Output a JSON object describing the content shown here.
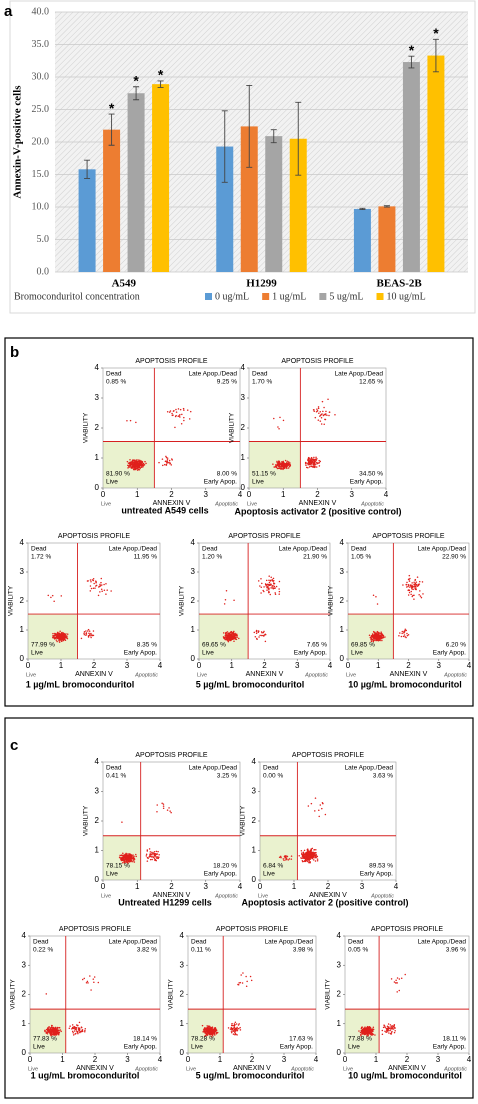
{
  "panel_labels": [
    "a",
    "b",
    "c"
  ],
  "chart_data": [
    {
      "type": "bar",
      "ylabel": "Annexin-V-positive cells",
      "legend_title": "Bromoconduritol concentration",
      "categories": [
        "A549",
        "H1299",
        "BEAS-2B"
      ],
      "series": [
        {
          "name": "0 ug/mL",
          "color": "#5b9bd5",
          "values": [
            15.8,
            19.3,
            9.7
          ],
          "errors": [
            1.4,
            5.5,
            0.1
          ]
        },
        {
          "name": "1 ug/mL",
          "color": "#ed7d31",
          "values": [
            21.9,
            22.4,
            10.1
          ],
          "errors": [
            2.4,
            6.3,
            0.1
          ]
        },
        {
          "name": "5 ug/mL",
          "color": "#a5a5a5",
          "values": [
            27.5,
            20.9,
            32.3
          ],
          "errors": [
            1.0,
            1.0,
            0.9
          ]
        },
        {
          "name": "10 ug/mL",
          "color": "#ffc000",
          "values": [
            28.9,
            20.5,
            33.3
          ],
          "errors": [
            0.5,
            5.6,
            2.5
          ]
        }
      ],
      "annotations": [
        {
          "text": "*",
          "category": "A549",
          "series": "1 ug/mL"
        },
        {
          "text": "*",
          "category": "A549",
          "series": "5 ug/mL"
        },
        {
          "text": "*",
          "category": "A549",
          "series": "10 ug/mL"
        },
        {
          "text": "*",
          "category": "BEAS-2B",
          "series": "5 ug/mL"
        },
        {
          "text": "*",
          "category": "BEAS-2B",
          "series": "10 ug/mL"
        }
      ],
      "ylim": [
        0,
        40
      ],
      "yticks": [
        {
          "value": 0,
          "label": "0.0"
        },
        {
          "value": 5,
          "label": "5.0"
        },
        {
          "value": 10,
          "label": "10.0"
        },
        {
          "value": 15,
          "label": "15.0"
        },
        {
          "value": 20,
          "label": "20.0"
        },
        {
          "value": 25,
          "label": "25.0"
        },
        {
          "value": 30,
          "label": "30.0"
        },
        {
          "value": 35,
          "label": "35.0"
        },
        {
          "value": 40,
          "label": "40.0"
        }
      ],
      "grid": true,
      "legend": "bottom"
    },
    {
      "type": "flow",
      "title": "APOPTOSIS PROFILE",
      "xlabel": "ANNEXIN V",
      "ylabel": "VIABILITY",
      "corner_left": "Live",
      "corner_right": "Apoptotic",
      "xlim": [
        0,
        4
      ],
      "ylim": [
        0,
        4
      ],
      "xticks": [
        0,
        1,
        2,
        3,
        4
      ],
      "yticks": [
        0,
        1,
        2,
        3,
        4
      ],
      "gate": [
        1.5,
        1.55
      ],
      "caption": "untreated A549 cells",
      "quadrants": [
        {
          "name": "Dead",
          "value": 0.85,
          "value_label": "0.85 %"
        },
        {
          "name": "Late Apop./Dead",
          "value": 9.25,
          "value_label": "9.25 %"
        },
        {
          "name": "Live",
          "value": 81.9,
          "value_label": "81.90 %"
        },
        {
          "name": "Early Apop.",
          "value": 8.0,
          "value_label": "8.00 %"
        }
      ]
    },
    {
      "type": "flow",
      "title": "APOPTOSIS PROFILE",
      "xlabel": "ANNEXIN V",
      "ylabel": "VIABILITY",
      "corner_left": "Live",
      "corner_right": "Apoptotic",
      "xlim": [
        0,
        4
      ],
      "ylim": [
        0,
        4
      ],
      "xticks": [
        0,
        1,
        2,
        3,
        4
      ],
      "yticks": [
        0,
        1,
        2,
        3,
        4
      ],
      "gate": [
        1.5,
        1.55
      ],
      "caption": "Apoptosis activator 2 (positive control)",
      "quadrants": [
        {
          "name": "Dead",
          "value": 1.7,
          "value_label": "1.70 %"
        },
        {
          "name": "Late Apop./Dead",
          "value": 12.65,
          "value_label": "12.65 %"
        },
        {
          "name": "Live",
          "value": 51.15,
          "value_label": "51.15 %"
        },
        {
          "name": "Early Apop.",
          "value": 34.5,
          "value_label": "34.50 %"
        }
      ]
    },
    {
      "type": "flow",
      "title": "APOPTOSIS PROFILE",
      "xlabel": "ANNEXIN V",
      "ylabel": "VIABILITY",
      "corner_left": "Live",
      "corner_right": "Apoptotic",
      "xlim": [
        0,
        4
      ],
      "ylim": [
        0,
        4
      ],
      "xticks": [
        0,
        1,
        2,
        3,
        4
      ],
      "yticks": [
        0,
        1,
        2,
        3,
        4
      ],
      "gate": [
        1.5,
        1.55
      ],
      "caption": "1 µg/mL bromoconduritol",
      "quadrants": [
        {
          "name": "Dead",
          "value": 1.72,
          "value_label": "1.72 %"
        },
        {
          "name": "Late Apop./Dead",
          "value": 11.95,
          "value_label": "11.95 %"
        },
        {
          "name": "Live",
          "value": 77.99,
          "value_label": "77.99 %"
        },
        {
          "name": "Early Apop.",
          "value": 8.35,
          "value_label": "8.35 %"
        }
      ]
    },
    {
      "type": "flow",
      "title": "APOPTOSIS PROFILE",
      "xlabel": "ANNEXIN V",
      "ylabel": "VIABILITY",
      "corner_left": "Live",
      "corner_right": "Apoptotic",
      "xlim": [
        0,
        4
      ],
      "ylim": [
        0,
        4
      ],
      "xticks": [
        0,
        1,
        2,
        3,
        4
      ],
      "yticks": [
        0,
        1,
        2,
        3,
        4
      ],
      "gate": [
        1.5,
        1.55
      ],
      "caption": "5 µg/mL bromoconduritol",
      "quadrants": [
        {
          "name": "Dead",
          "value": 1.2,
          "value_label": "1.20 %"
        },
        {
          "name": "Late Apop./Dead",
          "value": 21.9,
          "value_label": "21.90 %"
        },
        {
          "name": "Live",
          "value": 69.65,
          "value_label": "69.65 %"
        },
        {
          "name": "Early Apop.",
          "value": 7.65,
          "value_label": "7.65 %"
        }
      ]
    },
    {
      "type": "flow",
      "title": "APOPTOSIS PROFILE",
      "xlabel": "ANNEXIN V",
      "ylabel": "VIABILITY",
      "corner_left": "Live",
      "corner_right": "Apoptotic",
      "xlim": [
        0,
        4
      ],
      "ylim": [
        0,
        4
      ],
      "xticks": [
        0,
        1,
        2,
        3,
        4
      ],
      "yticks": [
        0,
        1,
        2,
        3,
        4
      ],
      "gate": [
        1.5,
        1.55
      ],
      "caption": "10 µg/mL bromoconduritol",
      "quadrants": [
        {
          "name": "Dead",
          "value": 1.05,
          "value_label": "1.05 %"
        },
        {
          "name": "Late Apop./Dead",
          "value": 22.9,
          "value_label": "22.90 %"
        },
        {
          "name": "Live",
          "value": 69.85,
          "value_label": "69.85 %"
        },
        {
          "name": "Early Apop.",
          "value": 6.2,
          "value_label": "6.20 %"
        }
      ]
    },
    {
      "type": "flow",
      "title": "APOPTOSIS PROFILE",
      "xlabel": "ANNEXIN V",
      "ylabel": "VIABILITY",
      "corner_left": "Live",
      "corner_right": "Apoptotic",
      "xlim": [
        0,
        4
      ],
      "ylim": [
        0,
        4
      ],
      "xticks": [
        0,
        1,
        2,
        3,
        4
      ],
      "yticks": [
        0,
        1,
        2,
        3,
        4
      ],
      "gate": [
        1.1,
        1.5
      ],
      "caption": "Untreated H1299 cells",
      "quadrants": [
        {
          "name": "Dead",
          "value": 0.41,
          "value_label": "0.41 %"
        },
        {
          "name": "Late Apop./Dead",
          "value": 3.25,
          "value_label": "3.25 %"
        },
        {
          "name": "Live",
          "value": 78.15,
          "value_label": "78.15 %"
        },
        {
          "name": "Early Apop.",
          "value": 18.2,
          "value_label": "18.20 %"
        }
      ]
    },
    {
      "type": "flow",
      "title": "APOPTOSIS PROFILE",
      "xlabel": "ANNEXIN V",
      "ylabel": "VIABILITY",
      "corner_left": "Live",
      "corner_right": "Apoptotic",
      "xlim": [
        0,
        4
      ],
      "ylim": [
        0,
        4
      ],
      "xticks": [
        0,
        1,
        2,
        3,
        4
      ],
      "yticks": [
        0,
        1,
        2,
        3,
        4
      ],
      "gate": [
        1.1,
        1.5
      ],
      "caption": "Apoptosis activator 2 (positive control)",
      "quadrants": [
        {
          "name": "Dead",
          "value": 0,
          "value_label": "0.00 %"
        },
        {
          "name": "Late Apop./Dead",
          "value": 3.63,
          "value_label": "3.63 %"
        },
        {
          "name": "Live",
          "value": 6.84,
          "value_label": "6.84 %"
        },
        {
          "name": "Early Apop.",
          "value": 89.53,
          "value_label": "89.53 %"
        }
      ]
    },
    {
      "type": "flow",
      "title": "APOPTOSIS PROFILE",
      "xlabel": "ANNEXIN V",
      "ylabel": "VIABILITY",
      "corner_left": "Live",
      "corner_right": "Apoptotic",
      "xlim": [
        0,
        4
      ],
      "ylim": [
        0,
        4
      ],
      "xticks": [
        0,
        1,
        2,
        3,
        4
      ],
      "yticks": [
        0,
        1,
        2,
        3,
        4
      ],
      "gate": [
        1.1,
        1.5
      ],
      "caption": "1 ug/mL bromoconduritol",
      "quadrants": [
        {
          "name": "Dead",
          "value": 0.22,
          "value_label": "0.22 %"
        },
        {
          "name": "Late Apop./Dead",
          "value": 3.82,
          "value_label": "3.82 %"
        },
        {
          "name": "Live",
          "value": 77.83,
          "value_label": "77.83 %"
        },
        {
          "name": "Early Apop.",
          "value": 18.14,
          "value_label": "18.14 %"
        }
      ]
    },
    {
      "type": "flow",
      "title": "APOPTOSIS PROFILE",
      "xlabel": "ANNEXIN V",
      "ylabel": "VIABILITY",
      "corner_left": "Live",
      "corner_right": "Apoptotic",
      "xlim": [
        0,
        4
      ],
      "ylim": [
        0,
        4
      ],
      "xticks": [
        0,
        1,
        2,
        3,
        4
      ],
      "yticks": [
        0,
        1,
        2,
        3,
        4
      ],
      "gate": [
        1.1,
        1.5
      ],
      "caption": "5 ug/mL bromoconduritol",
      "quadrants": [
        {
          "name": "Dead",
          "value": 0.11,
          "value_label": "0.11 %"
        },
        {
          "name": "Late Apop./Dead",
          "value": 3.98,
          "value_label": "3.98 %"
        },
        {
          "name": "Live",
          "value": 78.28,
          "value_label": "78.28 %"
        },
        {
          "name": "Early Apop.",
          "value": 17.63,
          "value_label": "17.63 %"
        }
      ]
    },
    {
      "type": "flow",
      "title": "APOPTOSIS PROFILE",
      "xlabel": "ANNEXIN V",
      "ylabel": "VIABILITY",
      "corner_left": "Live",
      "corner_right": "Apoptotic",
      "xlim": [
        0,
        4
      ],
      "ylim": [
        0,
        4
      ],
      "xticks": [
        0,
        1,
        2,
        3,
        4
      ],
      "yticks": [
        0,
        1,
        2,
        3,
        4
      ],
      "gate": [
        1.1,
        1.5
      ],
      "caption": "10 ug/mL bromoconduritol",
      "quadrants": [
        {
          "name": "Dead",
          "value": 0.05,
          "value_label": "0.05 %"
        },
        {
          "name": "Late Apop./Dead",
          "value": 3.96,
          "value_label": "3.96 %"
        },
        {
          "name": "Live",
          "value": 77.88,
          "value_label": "77.88 %"
        },
        {
          "name": "Early Apop.",
          "value": 18.11,
          "value_label": "18.11 %"
        }
      ]
    }
  ]
}
